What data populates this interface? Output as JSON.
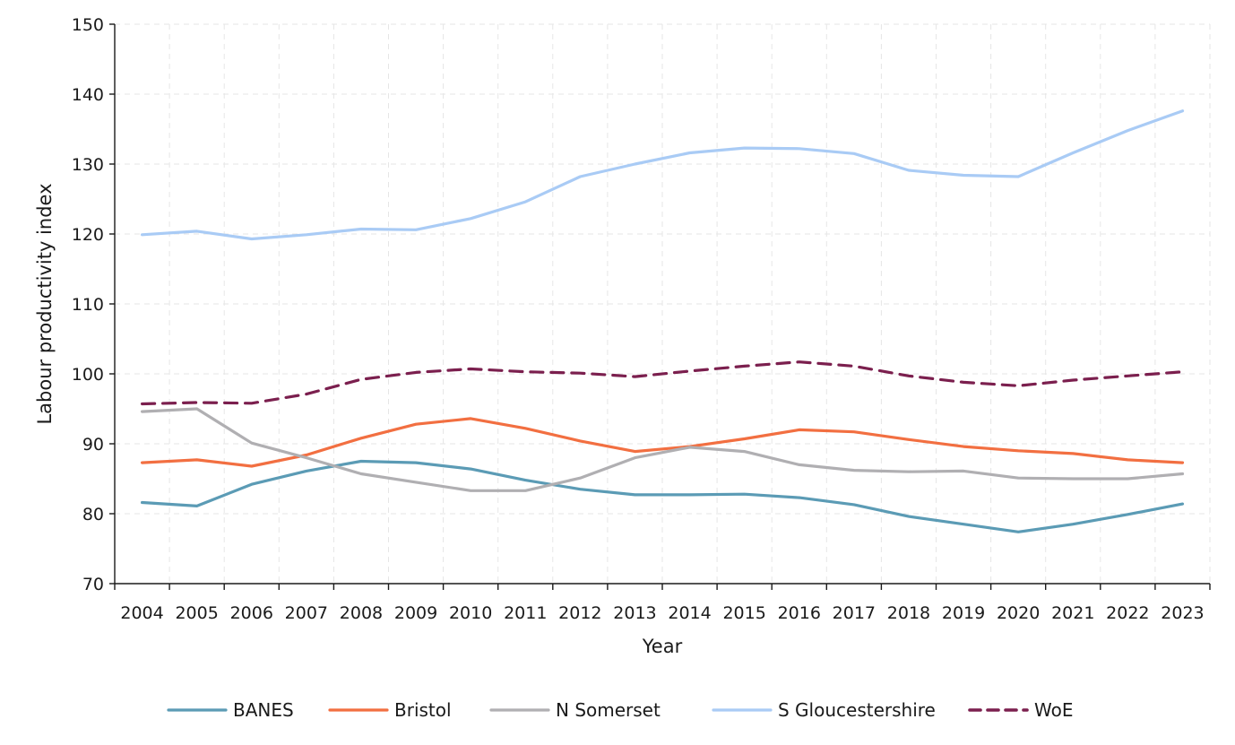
{
  "chart_data": {
    "type": "line",
    "title": "",
    "xlabel": "Year",
    "ylabel": "Labour productivity index",
    "ylim": [
      70,
      150
    ],
    "yticks": [
      70,
      80,
      90,
      100,
      110,
      120,
      130,
      140,
      150
    ],
    "x": [
      "2004",
      "2005",
      "2006",
      "2007",
      "2008",
      "2009",
      "2010",
      "2011",
      "2012",
      "2013",
      "2014",
      "2015",
      "2016",
      "2017",
      "2018",
      "2019",
      "2020",
      "2021",
      "2022",
      "2023"
    ],
    "grid": true,
    "legend": "bottom",
    "series": [
      {
        "name": "BANES",
        "color": "#5b9bb5",
        "dashed": false,
        "values": [
          81.6,
          81.1,
          84.2,
          86.1,
          87.5,
          87.3,
          86.4,
          84.8,
          83.5,
          82.7,
          82.7,
          82.8,
          82.3,
          81.3,
          79.6,
          78.5,
          77.4,
          78.5,
          79.9,
          81.4
        ]
      },
      {
        "name": "Bristol",
        "color": "#f26f41",
        "dashed": false,
        "values": [
          87.3,
          87.7,
          86.8,
          88.4,
          90.8,
          92.8,
          93.6,
          92.2,
          90.4,
          88.9,
          89.6,
          90.7,
          92.0,
          91.7,
          90.6,
          89.6,
          89.0,
          88.6,
          87.7,
          87.3
        ]
      },
      {
        "name": "N Somerset",
        "color": "#b0afb2",
        "dashed": false,
        "values": [
          94.6,
          95.0,
          90.1,
          88.0,
          85.7,
          84.5,
          83.3,
          83.3,
          85.1,
          88.0,
          89.5,
          88.9,
          87.0,
          86.2,
          86.0,
          86.1,
          85.1,
          85.0,
          85.0,
          85.7
        ]
      },
      {
        "name": "S Gloucestershire",
        "color": "#a9cbf5",
        "dashed": false,
        "values": [
          119.9,
          120.4,
          119.3,
          119.9,
          120.7,
          120.6,
          122.2,
          124.6,
          128.2,
          130.0,
          131.6,
          132.3,
          132.2,
          131.5,
          129.1,
          128.4,
          128.2,
          131.6,
          134.8,
          137.6
        ]
      },
      {
        "name": "WoE",
        "color": "#7b1f4e",
        "dashed": true,
        "values": [
          95.7,
          95.9,
          95.8,
          97.1,
          99.2,
          100.2,
          100.7,
          100.3,
          100.1,
          99.6,
          100.4,
          101.1,
          101.7,
          101.1,
          99.7,
          98.8,
          98.3,
          99.1,
          99.7,
          100.3
        ]
      }
    ]
  }
}
